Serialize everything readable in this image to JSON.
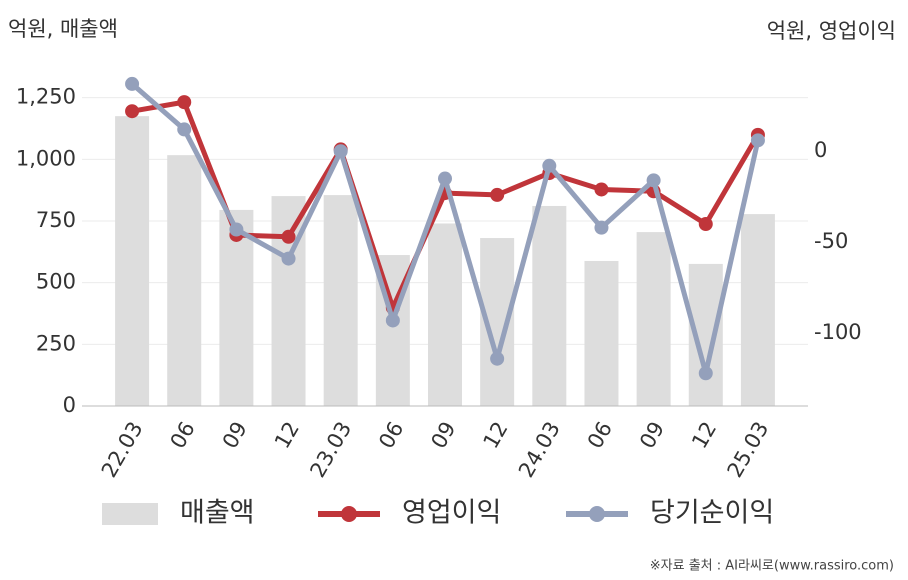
{
  "chart_data": {
    "type": "bar-line",
    "y_label": "억원, 매출액",
    "y2_label": "억원, 영업이익",
    "source": "※자료 출처 : AI라씨로(www.rassiro.com)",
    "categories": [
      "22.03",
      "06",
      "09",
      "12",
      "23.03",
      "06",
      "09",
      "12",
      "24.03",
      "06",
      "09",
      "12",
      "25.03"
    ],
    "series": [
      {
        "name": "매출액",
        "type": "bar",
        "color": "#dddddd",
        "values": [
          1175,
          1017,
          795,
          851,
          855,
          612,
          740,
          681,
          811,
          588,
          705,
          576,
          778
        ]
      },
      {
        "name": "영업이익",
        "type": "line",
        "axis": "y2",
        "color": "#c0353a",
        "values": [
          22,
          27,
          -46,
          -47,
          1,
          -86,
          -23,
          -24,
          -12,
          -21,
          -22,
          -40,
          9
        ]
      },
      {
        "name": "당기순이익",
        "type": "line",
        "axis": "y2",
        "color": "#94a0bb",
        "values": [
          37,
          12,
          -43,
          -59,
          0,
          -93,
          -15,
          -114,
          -8,
          -42,
          -16,
          -122,
          6
        ]
      }
    ],
    "ylim": [
      0,
      1350
    ],
    "yticks": [
      0,
      250,
      500,
      750,
      {
        "value": 1000,
        "label": "1,000"
      },
      {
        "value": 1250,
        "label": "1,250"
      }
    ],
    "y2lim": [
      -140,
      43
    ],
    "y2ticks": [
      -100,
      -50,
      0
    ],
    "grid": true
  }
}
